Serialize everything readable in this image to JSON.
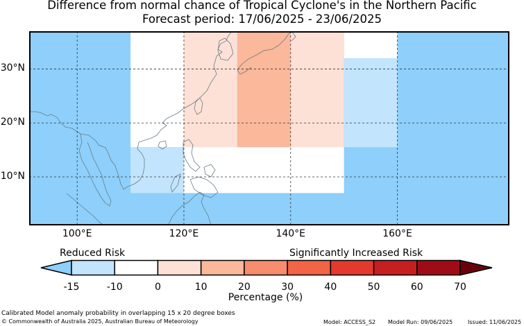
{
  "title": {
    "line1": "Difference from normal chance of Tropical Cyclone's in the Northern Pacific",
    "line2": "Forecast period: 17/06/2025 - 23/06/2025"
  },
  "map": {
    "lon_range": [
      91,
      181
    ],
    "lat_range": [
      1,
      37
    ],
    "lon_ticks": [
      100,
      120,
      140,
      160
    ],
    "lon_tick_labels": [
      "100°E",
      "120°E",
      "140°E",
      "160°E"
    ],
    "lat_ticks": [
      10,
      20,
      30
    ],
    "lat_tick_labels": [
      "10°N",
      "20°N",
      "30°N"
    ],
    "background_color": "#8ecffb",
    "cells": [
      {
        "lon": [
          110,
          120
        ],
        "lat": [
          15.5,
          37
        ],
        "category": "0 to 10",
        "color": "#ffffff"
      },
      {
        "lon": [
          110,
          120
        ],
        "lat": [
          7,
          15.5
        ],
        "category": "-10 to 0",
        "color": "#c2e4fd"
      },
      {
        "lon": [
          120,
          130
        ],
        "lat": [
          15.5,
          37
        ],
        "category": "10 to 20",
        "color": "#fde1d6"
      },
      {
        "lon": [
          130,
          140
        ],
        "lat": [
          15.5,
          37
        ],
        "category": "20 to 30",
        "color": "#fbb89b"
      },
      {
        "lon": [
          140,
          150
        ],
        "lat": [
          15.5,
          37
        ],
        "category": "10 to 20",
        "color": "#fde1d6"
      },
      {
        "lon": [
          120,
          150
        ],
        "lat": [
          7,
          15.5
        ],
        "category": "0 to 10",
        "color": "#ffffff"
      },
      {
        "lon": [
          150,
          160
        ],
        "lat": [
          32,
          37
        ],
        "category": "0 to 10",
        "color": "#ffffff"
      },
      {
        "lon": [
          150,
          160
        ],
        "lat": [
          15.5,
          32
        ],
        "category": "-10 to 0",
        "color": "#c2e4fd"
      }
    ]
  },
  "legend": {
    "reduced_label": "Reduced Risk",
    "increased_label": "Significantly Increased Risk",
    "ticks": [
      "-15",
      "-10",
      "0",
      "10",
      "20",
      "30",
      "40",
      "50",
      "60",
      "70"
    ],
    "colors": [
      "#8ecffb",
      "#c2e4fd",
      "#ffffff",
      "#fde1d6",
      "#fbb89b",
      "#f78c6e",
      "#f16445",
      "#e43a2d",
      "#c61f22",
      "#9e0d17",
      "#6b000c"
    ],
    "label": "Percentage (%)"
  },
  "footer": {
    "line1": "Calibrated Model anomaly probability in overlapping 15 x 20 degree boxes",
    "line2": "© Commonwealth of Australia 2025, Australian Bureau of Meteorology",
    "model": "Model: ACCESS_S2",
    "run": "Model Run: 09/06/2025",
    "issued": "Issued: 11/06/2025"
  }
}
